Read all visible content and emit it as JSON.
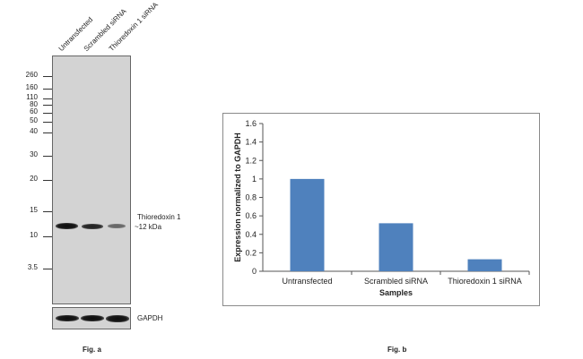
{
  "figure_a": {
    "lanes": [
      "Untransfected",
      "Scrambled siRNA",
      "Thioredoxin 1 siRNA"
    ],
    "mw_markers": [
      "260",
      "160",
      "110",
      "80",
      "60",
      "50",
      "40",
      "30",
      "20",
      "15",
      "10",
      "3.5"
    ],
    "band_label_line1": "Thioredoxin 1",
    "band_label_line2": "~12 kDa",
    "loading_control_label": "GAPDH",
    "caption": "Fig. a"
  },
  "figure_b": {
    "caption": "Fig. b"
  },
  "chart_data": {
    "type": "bar",
    "categories": [
      "Untransfected",
      "Scrambled siRNA",
      "Thioredoxin 1 siRNA"
    ],
    "values": [
      1.0,
      0.52,
      0.13
    ],
    "title": "",
    "xlabel": "Samples",
    "ylabel": "Expression normalized to GAPDH",
    "ylim": [
      0,
      1.6
    ],
    "yticks": [
      "0",
      "0.2",
      "0.4",
      "0.6",
      "0.8",
      "1",
      "1.2",
      "1.4",
      "1.6"
    ],
    "grid": false,
    "bar_color": "#4f81bd"
  }
}
